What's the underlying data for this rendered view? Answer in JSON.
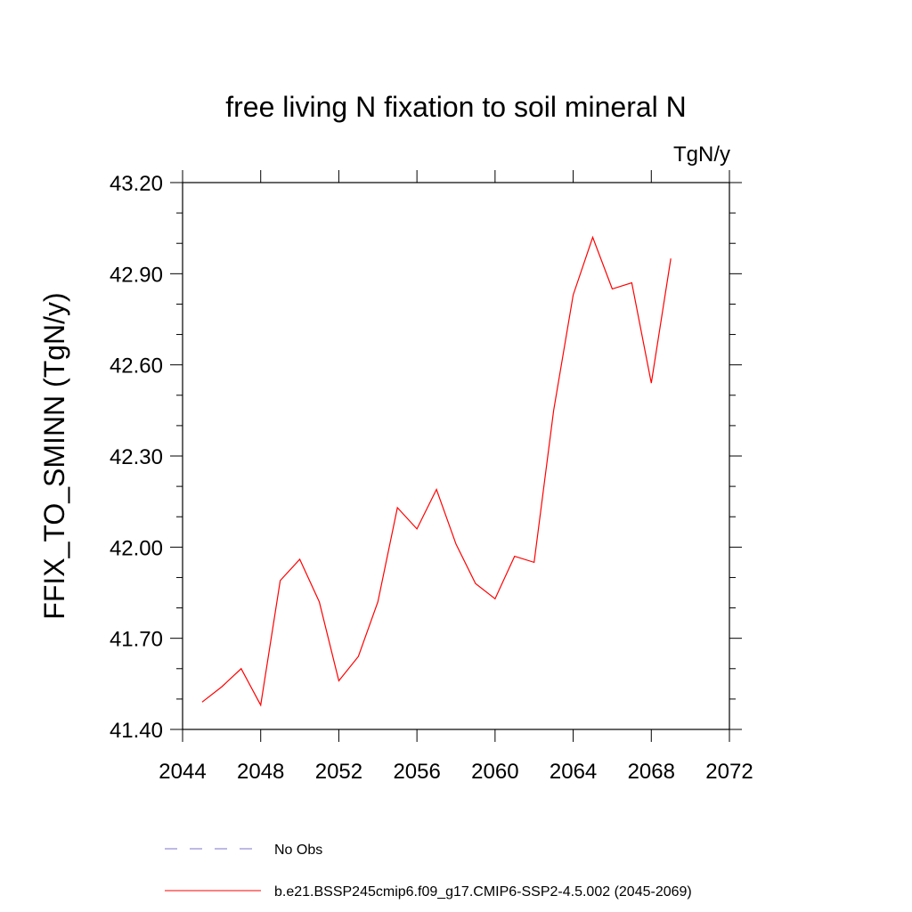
{
  "chart_data": {
    "type": "line",
    "title": "free living N fixation to soil mineral N",
    "units_label": "TgN/y",
    "ylabel": "FFIX_TO_SMINN  (TgN/y)",
    "xlabel": "",
    "xlim": [
      2044,
      2072
    ],
    "ylim": [
      41.4,
      43.2
    ],
    "x_ticks": [
      "2044",
      "2048",
      "2052",
      "2056",
      "2060",
      "2064",
      "2068",
      "2072"
    ],
    "y_ticks": [
      "41.40",
      "41.70",
      "42.00",
      "42.30",
      "42.60",
      "42.90",
      "43.20"
    ],
    "grid": false,
    "legend_position": "bottom",
    "series": [
      {
        "name": "No Obs",
        "color": "#7b74c9",
        "dash": "dashed",
        "x": [],
        "values": []
      },
      {
        "name": "b.e21.BSSP245cmip6.f09_g17.CMIP6-SSP2-4.5.002 (2045-2069)",
        "color": "#ff0000",
        "dash": "solid",
        "x": [
          2045,
          2046,
          2047,
          2048,
          2049,
          2050,
          2051,
          2052,
          2053,
          2054,
          2055,
          2056,
          2057,
          2058,
          2059,
          2060,
          2061,
          2062,
          2063,
          2064,
          2065,
          2066,
          2067,
          2068,
          2069
        ],
        "values": [
          41.49,
          41.54,
          41.6,
          41.48,
          41.89,
          41.96,
          41.82,
          41.56,
          41.64,
          41.82,
          42.13,
          42.06,
          42.19,
          42.01,
          41.88,
          41.83,
          41.97,
          41.95,
          42.45,
          42.83,
          43.02,
          42.85,
          42.87,
          42.54,
          42.95
        ]
      }
    ]
  }
}
